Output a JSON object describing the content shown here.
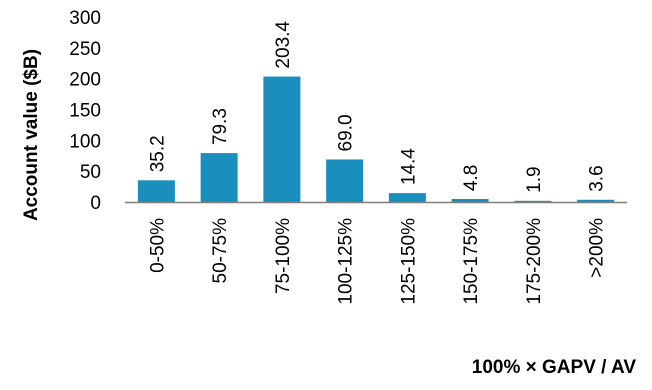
{
  "chart_data": {
    "type": "bar",
    "title": "",
    "xlabel": "100% × GAPV / AV",
    "ylabel": "Account value ($B)",
    "categories": [
      "0-50%",
      "50-75%",
      "75-100%",
      "100-125%",
      "125-150%",
      "150-175%",
      "175-200%",
      ">200%"
    ],
    "values": [
      35.2,
      79.3,
      203.4,
      69.0,
      14.4,
      4.8,
      1.9,
      3.6
    ],
    "value_labels": [
      "35.2",
      "79.3",
      "203.4",
      "69.0",
      "14.4",
      "4.8",
      "1.9",
      "3.6"
    ],
    "ylim": [
      0,
      300
    ],
    "yticks": [
      0,
      50,
      100,
      150,
      200,
      250,
      300
    ],
    "grid": false,
    "legend": "none",
    "bar_color": "#1a8fbd",
    "axis_color": "#7f7f7f"
  }
}
